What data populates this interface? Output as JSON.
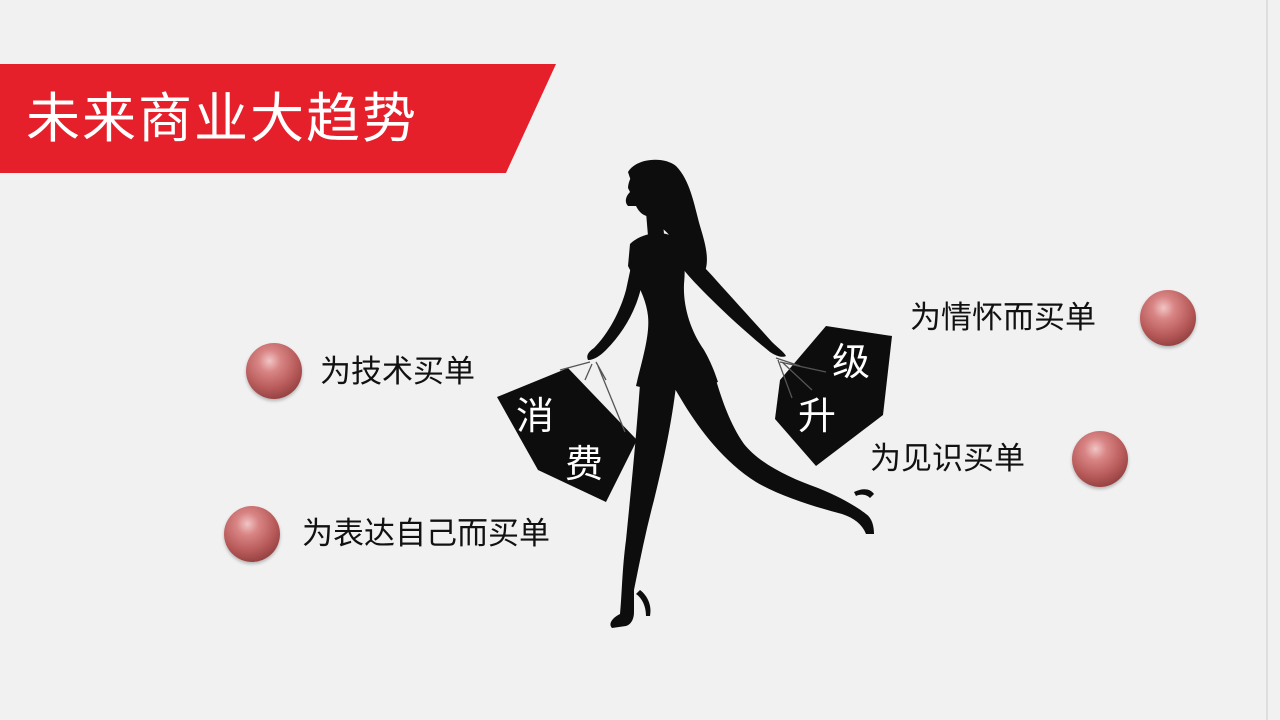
{
  "slide": {
    "title": "未来商业大趋势",
    "bag_left": {
      "char_top": "消",
      "char_bottom": "费"
    },
    "bag_right": {
      "char_top": "级",
      "char_bottom": "升"
    },
    "left_items": [
      {
        "label": "为技术买单"
      },
      {
        "label": "为表达自己而买单"
      }
    ],
    "right_items": [
      {
        "label": "为情怀而买单"
      },
      {
        "label": "为见识买单"
      }
    ]
  },
  "colors": {
    "background": "#f1f1f1",
    "banner": "#e5202a",
    "silhouette": "#0d0d0d",
    "ball": "#c06a6a"
  }
}
